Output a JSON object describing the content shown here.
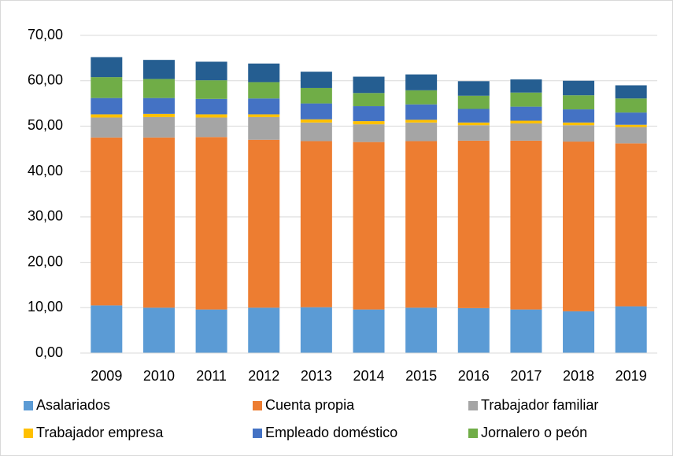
{
  "chart_data": {
    "type": "stacked_bar",
    "categories": [
      "2009",
      "2010",
      "2011",
      "2012",
      "2013",
      "2014",
      "2015",
      "2016",
      "2017",
      "2018",
      "2019"
    ],
    "series": [
      {
        "name": "Asalariados",
        "color": "#5b9bd5",
        "values": [
          10.5,
          10.0,
          9.6,
          10.0,
          10.1,
          9.6,
          10.0,
          9.9,
          9.6,
          9.2,
          10.3
        ]
      },
      {
        "name": "Cuenta propia",
        "color": "#ed7d31",
        "values": [
          37.0,
          37.5,
          38.0,
          37.0,
          36.6,
          36.9,
          36.7,
          36.9,
          37.2,
          37.4,
          35.9
        ]
      },
      {
        "name": "Trabajador familiar",
        "color": "#a5a5a5",
        "values": [
          4.4,
          4.5,
          4.3,
          5.0,
          4.1,
          3.9,
          4.1,
          3.4,
          3.8,
          3.6,
          3.6
        ]
      },
      {
        "name": "Trabajador empresa",
        "color": "#ffc000",
        "values": [
          0.7,
          0.7,
          0.7,
          0.6,
          0.7,
          0.7,
          0.6,
          0.6,
          0.6,
          0.6,
          0.5
        ]
      },
      {
        "name": "Empleado doméstico",
        "color": "#4472c4",
        "values": [
          3.6,
          3.5,
          3.4,
          3.5,
          3.5,
          3.3,
          3.4,
          3.0,
          3.1,
          2.9,
          2.7
        ]
      },
      {
        "name": "Jornalero o peón",
        "color": "#70ad47",
        "values": [
          4.6,
          4.2,
          4.1,
          3.6,
          3.4,
          2.9,
          3.1,
          2.9,
          3.1,
          3.1,
          3.1
        ]
      },
      {
        "color": "#255e91",
        "values": [
          4.4,
          4.2,
          4.1,
          4.1,
          3.6,
          3.6,
          3.5,
          3.2,
          2.9,
          3.2,
          2.9
        ]
      }
    ],
    "ylim": [
      0,
      70
    ],
    "yticks": [
      {
        "value": 0,
        "label": "0,00"
      },
      {
        "value": 10,
        "label": "10,00"
      },
      {
        "value": 20,
        "label": "20,00"
      },
      {
        "value": 30,
        "label": "30,00"
      },
      {
        "value": 40,
        "label": "40,00"
      },
      {
        "value": 50,
        "label": "50,00"
      },
      {
        "value": 60,
        "label": "60,00"
      },
      {
        "value": 70,
        "label": "70,00"
      }
    ],
    "grid": true
  }
}
